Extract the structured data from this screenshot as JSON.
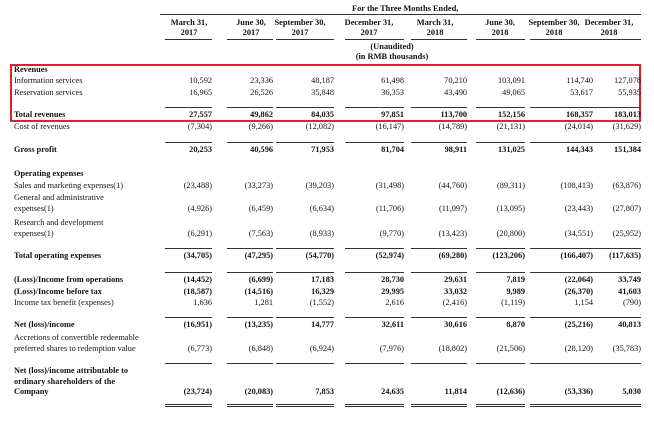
{
  "header": {
    "period_title": "For the Three Months Ended,",
    "unaudited": "(Unaudited)",
    "units": "(in RMB thousands)",
    "columns": [
      [
        "March 31,",
        "2017"
      ],
      [
        "June 30,",
        "2017"
      ],
      [
        "September 30,",
        "2017"
      ],
      [
        "December 31,",
        "2017"
      ],
      [
        "March 31,",
        "2018"
      ],
      [
        "June 30,",
        "2018"
      ],
      [
        "September 30,",
        "2018"
      ],
      [
        "December 31,",
        "2018"
      ]
    ]
  },
  "highlight_color": "#e0202c",
  "rows": [
    {
      "label": [
        "Revenues"
      ],
      "bold": true,
      "values": []
    },
    {
      "label": [
        "Information services"
      ],
      "values": [
        "10,592",
        "23,336",
        "48,187",
        "61,498",
        "70,210",
        "103,091",
        "114,740",
        "127,078"
      ]
    },
    {
      "label": [
        "Reservation services"
      ],
      "values": [
        "16,965",
        "26,526",
        "35,848",
        "36,353",
        "43,490",
        "49,065",
        "53,617",
        "55,935"
      ]
    },
    {
      "label": [
        "Total revenues"
      ],
      "bold": true,
      "rule_above": true,
      "values": [
        "27,557",
        "49,862",
        "84,035",
        "97,851",
        "113,700",
        "152,156",
        "168,357",
        "183,013"
      ]
    },
    {
      "label": [
        "Cost of revenues"
      ],
      "values": [
        "(7,304)",
        "(9,266)",
        "(12,082)",
        "(16,147)",
        "(14,789)",
        "(21,131)",
        "(24,014)",
        "(31,629)"
      ]
    },
    {
      "label": [
        "Gross profit"
      ],
      "bold": true,
      "rule_above": true,
      "values": [
        "20,253",
        "40,596",
        "71,953",
        "81,704",
        "98,911",
        "131,025",
        "144,343",
        "151,384"
      ]
    },
    {
      "label": [
        "Operating expenses"
      ],
      "bold": true,
      "values": []
    },
    {
      "label": [
        "Sales and marketing expenses(1)"
      ],
      "values": [
        "(23,488)",
        "(33,273)",
        "(39,203)",
        "(31,498)",
        "(44,760)",
        "(89,311)",
        "(108,413)",
        "(63,876)"
      ]
    },
    {
      "label": [
        "General and administrative",
        "expenses(1)"
      ],
      "values": [
        "(4,926)",
        "(6,459)",
        "(6,634)",
        "(11,706)",
        "(11,097)",
        "(13,095)",
        "(23,443)",
        "(27,807)"
      ]
    },
    {
      "label": [
        "Research and development",
        "expenses(1)"
      ],
      "values": [
        "(6,291)",
        "(7,563)",
        "(8,933)",
        "(9,770)",
        "(13,423)",
        "(20,800)",
        "(34,551)",
        "(25,952)"
      ]
    },
    {
      "label": [
        "Total operating expenses"
      ],
      "bold": true,
      "rule_above": true,
      "values": [
        "(34,705)",
        "(47,295)",
        "(54,770)",
        "(52,974)",
        "(69,280)",
        "(123,206)",
        "(166,407)",
        "(117,635)"
      ]
    },
    {
      "label": [
        "(Loss)/Income from operations"
      ],
      "bold": true,
      "rule_above": true,
      "values": [
        "(14,452)",
        "(6,699)",
        "17,183",
        "28,730",
        "29,631",
        "7,819",
        "(22,064)",
        "33,749"
      ]
    },
    {
      "label": [
        "(Loss)/Income before tax"
      ],
      "bold": true,
      "values": [
        "(18,587)",
        "(14,516)",
        "16,329",
        "29,995",
        "33,032",
        "9,989",
        "(26,370)",
        "41,603"
      ]
    },
    {
      "label": [
        "Income tax benefit (expenses)"
      ],
      "values": [
        "1,636",
        "1,281",
        "(1,552)",
        "2,616",
        "(2,416)",
        "(1,119)",
        "1,154",
        "(790)"
      ]
    },
    {
      "label": [
        "Net (loss)/income"
      ],
      "bold": true,
      "rule_above": true,
      "values": [
        "(16,951)",
        "(13,235)",
        "14,777",
        "32,611",
        "30,616",
        "8,870",
        "(25,216)",
        "40,813"
      ]
    },
    {
      "label": [
        "Accretions of convertible redeemable",
        "preferred shares to redemption value"
      ],
      "values": [
        "(6,773)",
        "(6,848)",
        "(6,924)",
        "(7,976)",
        "(18,802)",
        "(21,506)",
        "(28,120)",
        "(35,783)"
      ]
    },
    {
      "label": [
        "Net (loss)/income attributable to",
        "ordinary shareholders of the",
        "Company"
      ],
      "bold": true,
      "rule_above": true,
      "values": [
        "(23,724)",
        "(20,083)",
        "7,853",
        "24,635",
        "11,814",
        "(12,636)",
        "(53,336)",
        "5,030"
      ]
    }
  ]
}
